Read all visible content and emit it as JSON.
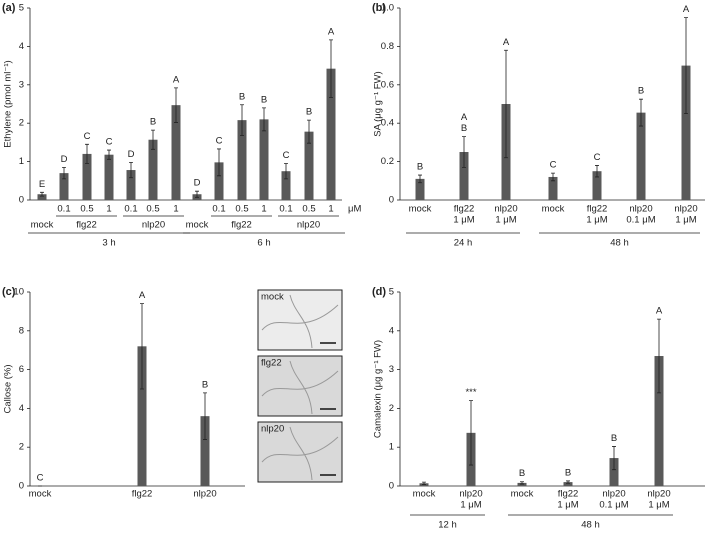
{
  "chart_data": [
    {
      "type": "bar",
      "panel": "(a)",
      "ylabel": "Ethylene (pmol ml⁻¹)",
      "color": "#595959",
      "ylim": [
        0,
        5
      ],
      "yticks": [
        0,
        1,
        2,
        3,
        4,
        5
      ],
      "dose_unit": "μM",
      "timepoints": [
        {
          "label": "3 h",
          "groups": [
            {
              "label": "mock",
              "categories": [
                null
              ],
              "values": [
                0.15
              ],
              "errors": [
                0.05
              ],
              "letters": [
                [
                  "E"
                ]
              ]
            },
            {
              "label": "flg22",
              "categories": [
                [
                  "0.1"
                ],
                [
                  "0.5"
                ],
                [
                  "1"
                ]
              ],
              "values": [
                0.7,
                1.2,
                1.18
              ],
              "errors": [
                0.15,
                0.25,
                0.12
              ],
              "letters": [
                [
                  "D"
                ],
                [
                  "C"
                ],
                [
                  "C"
                ]
              ]
            },
            {
              "label": "nlp20",
              "categories": [
                [
                  "0.1"
                ],
                [
                  "0.5"
                ],
                [
                  "1"
                ]
              ],
              "values": [
                0.78,
                1.57,
                2.47
              ],
              "errors": [
                0.2,
                0.25,
                0.45
              ],
              "letters": [
                [
                  "D"
                ],
                [
                  "B"
                ],
                [
                  "A"
                ]
              ]
            }
          ]
        },
        {
          "label": "6 h",
          "groups": [
            {
              "label": "mock",
              "categories": [
                null
              ],
              "values": [
                0.15
              ],
              "errors": [
                0.08
              ],
              "letters": [
                [
                  "D"
                ]
              ]
            },
            {
              "label": "flg22",
              "categories": [
                [
                  "0.1"
                ],
                [
                  "0.5"
                ],
                [
                  "1"
                ]
              ],
              "values": [
                0.98,
                2.08,
                2.1
              ],
              "errors": [
                0.35,
                0.4,
                0.3
              ],
              "letters": [
                [
                  "C"
                ],
                [
                  "B"
                ],
                [
                  "B"
                ]
              ]
            },
            {
              "label": "nlp20",
              "categories": [
                [
                  "0.1"
                ],
                [
                  "0.5"
                ],
                [
                  "1"
                ]
              ],
              "values": [
                0.75,
                1.78,
                3.42
              ],
              "errors": [
                0.2,
                0.3,
                0.75
              ],
              "letters": [
                [
                  "C"
                ],
                [
                  "B"
                ],
                [
                  "A"
                ]
              ]
            }
          ]
        }
      ]
    },
    {
      "type": "bar",
      "panel": "(b)",
      "ylabel": "SA (μg g⁻¹ FW)",
      "color": "#595959",
      "ylim": [
        0,
        1
      ],
      "yticks": [
        0,
        0.2,
        0.4,
        0.6,
        0.8,
        {
          "value": 1,
          "label": "1.0"
        }
      ],
      "timepoints": [
        {
          "label": "24 h",
          "groups": [
            {
              "categories": [
                [
                  "mock"
                ],
                [
                  "flg22",
                  "1 μM"
                ],
                [
                  "nlp20",
                  "1 μM"
                ]
              ],
              "values": [
                0.11,
                0.25,
                0.5
              ],
              "errors": [
                0.02,
                0.08,
                0.28
              ],
              "letters": [
                [
                  "B"
                ],
                [
                  "A",
                  "B"
                ],
                [
                  "A"
                ]
              ]
            }
          ]
        },
        {
          "label": "48 h",
          "groups": [
            {
              "categories": [
                [
                  "mock"
                ],
                [
                  "flg22",
                  "1 μM"
                ],
                [
                  "nlp20",
                  "0.1 μM"
                ],
                [
                  "nlp20",
                  "1 μM"
                ]
              ],
              "values": [
                0.12,
                0.15,
                0.455,
                0.7
              ],
              "errors": [
                0.02,
                0.03,
                0.07,
                0.25
              ],
              "letters": [
                [
                  "C"
                ],
                [
                  "C"
                ],
                [
                  "B"
                ],
                [
                  "A"
                ]
              ]
            }
          ]
        }
      ]
    },
    {
      "type": "bar",
      "panel": "(c)",
      "ylabel": "Callose (%)",
      "color": "#595959",
      "ylim": [
        0,
        10
      ],
      "yticks": [
        0,
        2,
        4,
        6,
        8,
        10
      ],
      "groups": [
        {
          "categories": [
            [
              "mock"
            ],
            [
              "flg22"
            ],
            [
              "nlp20"
            ]
          ],
          "values": [
            0,
            7.2,
            3.6
          ],
          "errors": [
            0,
            2.2,
            1.2
          ],
          "letters": [
            [
              "C"
            ],
            [
              "A"
            ],
            [
              "B"
            ]
          ]
        }
      ],
      "micrographs": [
        "mock",
        "flg22",
        "nlp20"
      ]
    },
    {
      "type": "bar",
      "panel": "(d)",
      "ylabel": "Camalexin (μg g⁻¹ FW)",
      "color": "#595959",
      "ylim": [
        0,
        5
      ],
      "yticks": [
        0,
        1,
        2,
        3,
        4,
        5
      ],
      "timepoints": [
        {
          "label": "12 h",
          "groups": [
            {
              "categories": [
                [
                  "mock"
                ],
                [
                  "nlp20",
                  "1 μM"
                ]
              ],
              "values": [
                0.07,
                1.37
              ],
              "errors": [
                0.03,
                0.83
              ],
              "letters": [
                null,
                [
                  "***"
                ]
              ]
            }
          ]
        },
        {
          "label": "48 h",
          "groups": [
            {
              "categories": [
                [
                  "mock"
                ],
                [
                  "flg22",
                  "1 μM"
                ],
                [
                  "nlp20",
                  "0.1 μM"
                ],
                [
                  "nlp20",
                  "1 μM"
                ]
              ],
              "values": [
                0.08,
                0.1,
                0.72,
                3.35
              ],
              "errors": [
                0.03,
                0.03,
                0.3,
                0.95
              ],
              "letters": [
                [
                  "B"
                ],
                [
                  "B"
                ],
                [
                  "B"
                ],
                [
                  "A"
                ]
              ]
            }
          ]
        }
      ]
    }
  ]
}
